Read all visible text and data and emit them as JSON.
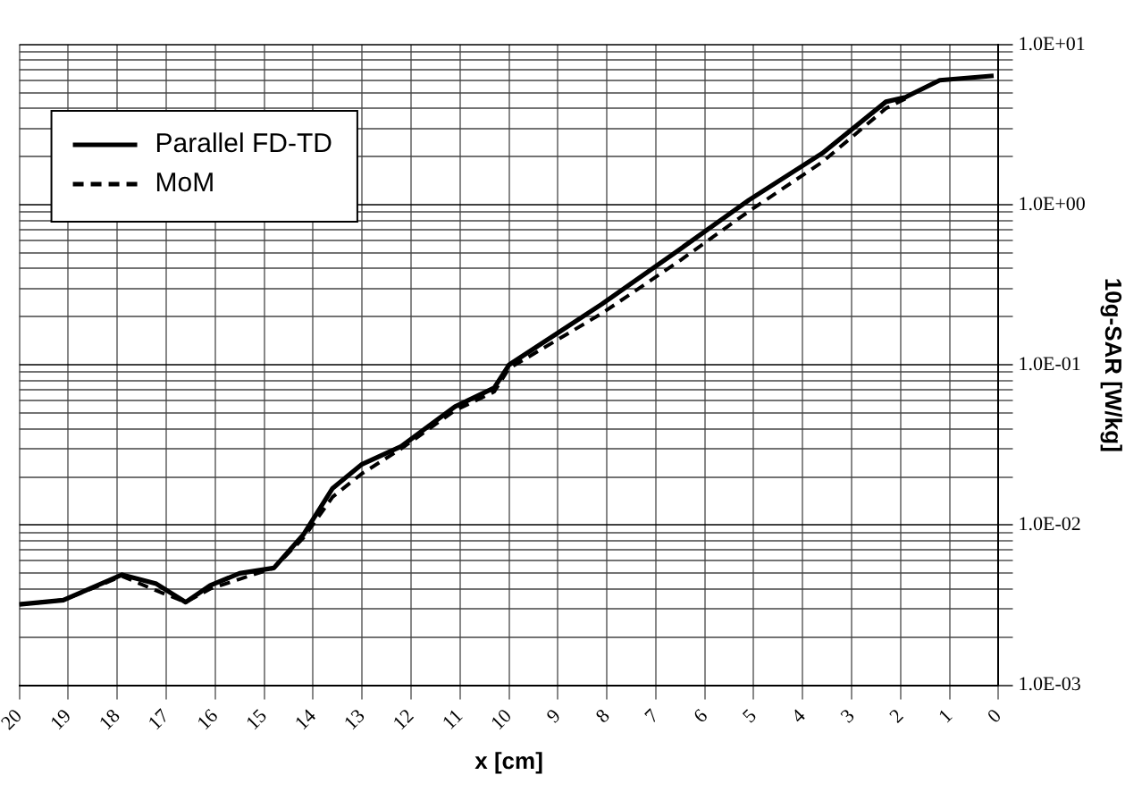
{
  "chart_data": {
    "type": "line",
    "xlabel": "x [cm]",
    "ylabel": "10g-SAR [W/kg]",
    "log": "y",
    "grid": true,
    "legend": "top left",
    "marker": "none",
    "xlim": [
      20,
      0
    ],
    "xticks": [
      20,
      19,
      18,
      17,
      16,
      15,
      14,
      13,
      12,
      11,
      10,
      9,
      8,
      7,
      6,
      5,
      4,
      3,
      2,
      1,
      0
    ],
    "ylim": [
      0.001,
      10
    ],
    "yticks": [
      {
        "value": 0.001,
        "label": "1.0E-03"
      },
      {
        "value": 0.002,
        "label": null
      },
      {
        "value": 0.003,
        "label": null
      },
      {
        "value": 0.004,
        "label": null
      },
      {
        "value": 0.005,
        "label": null
      },
      {
        "value": 0.006,
        "label": null
      },
      {
        "value": 0.007,
        "label": null
      },
      {
        "value": 0.008,
        "label": null
      },
      {
        "value": 0.009,
        "label": null
      },
      {
        "value": 0.01,
        "label": "1.0E-02"
      },
      {
        "value": 0.02,
        "label": null
      },
      {
        "value": 0.03,
        "label": null
      },
      {
        "value": 0.04,
        "label": null
      },
      {
        "value": 0.05,
        "label": null
      },
      {
        "value": 0.06,
        "label": null
      },
      {
        "value": 0.07,
        "label": null
      },
      {
        "value": 0.08,
        "label": null
      },
      {
        "value": 0.09,
        "label": null
      },
      {
        "value": 0.1,
        "label": "1.0E-01"
      },
      {
        "value": 0.2,
        "label": null
      },
      {
        "value": 0.3,
        "label": null
      },
      {
        "value": 0.4,
        "label": null
      },
      {
        "value": 0.5,
        "label": null
      },
      {
        "value": 0.6,
        "label": null
      },
      {
        "value": 0.7,
        "label": null
      },
      {
        "value": 0.8,
        "label": null
      },
      {
        "value": 0.9,
        "label": null
      },
      {
        "value": 1,
        "label": "1.0E+00"
      },
      {
        "value": 2,
        "label": null
      },
      {
        "value": 3,
        "label": null
      },
      {
        "value": 4,
        "label": null
      },
      {
        "value": 5,
        "label": null
      },
      {
        "value": 6,
        "label": null
      },
      {
        "value": 7,
        "label": null
      },
      {
        "value": 8,
        "label": null
      },
      {
        "value": 9,
        "label": null
      },
      {
        "value": 10,
        "label": "1.0E+01"
      }
    ],
    "series": [
      {
        "name": "Parallel FD-TD",
        "color": "#000000",
        "line_style": "solid",
        "x": [
          20,
          19.1,
          17.9,
          17.2,
          16.6,
          16.1,
          15.5,
          14.8,
          14.2,
          13.6,
          13,
          12.2,
          11.1,
          10.3,
          10,
          8.1,
          6.5,
          5.1,
          3.6,
          2.3,
          1.9,
          1.2,
          0.1
        ],
        "values": [
          0.0032,
          0.0034,
          0.0049,
          0.0043,
          0.0033,
          0.0042,
          0.005,
          0.0054,
          0.0087,
          0.017,
          0.024,
          0.031,
          0.055,
          0.072,
          0.1,
          0.24,
          0.53,
          1.07,
          2.1,
          4.4,
          4.7,
          6,
          6.4
        ]
      },
      {
        "name": "MoM",
        "color": "#000000",
        "line_style": "dashed",
        "x": [
          20,
          19.1,
          17.9,
          17.2,
          16.6,
          16.1,
          15.5,
          14.8,
          14.2,
          13.6,
          13,
          12.2,
          11.1,
          10.3,
          10,
          8.1,
          6.5,
          5.1,
          3.6,
          2.3,
          1.9
        ],
        "values": [
          0.0032,
          0.0034,
          0.0048,
          0.0039,
          0.0033,
          0.004,
          0.0046,
          0.0054,
          0.0083,
          0.015,
          0.021,
          0.03,
          0.052,
          0.068,
          0.095,
          0.21,
          0.45,
          0.91,
          1.85,
          4,
          4.6
        ]
      }
    ]
  }
}
